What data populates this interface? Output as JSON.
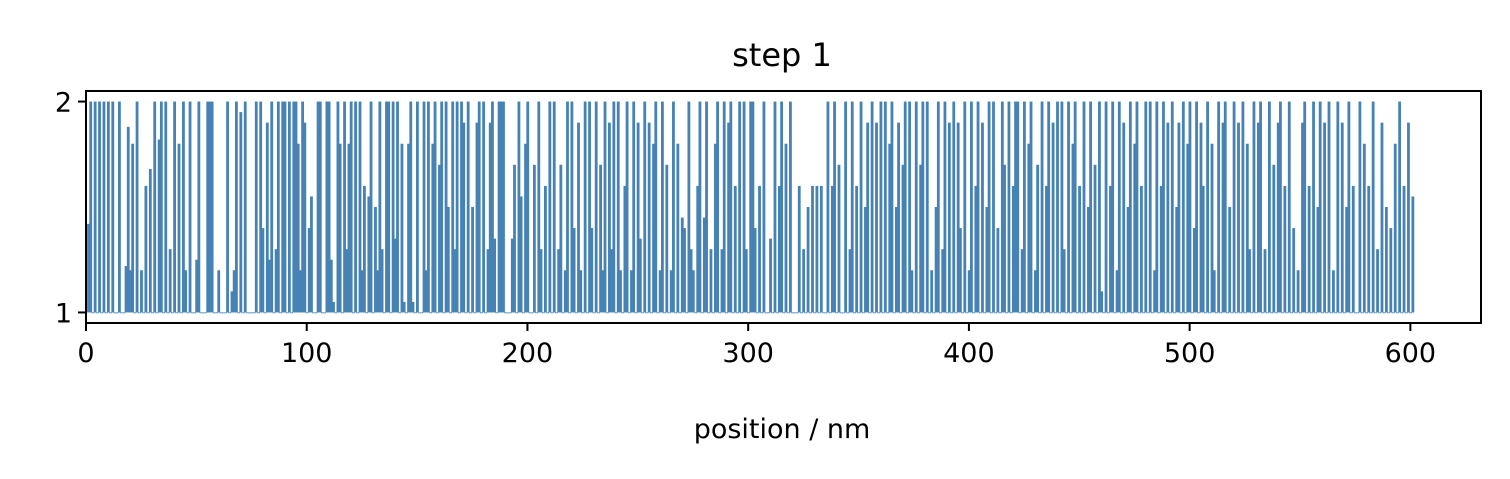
{
  "chart_data": {
    "type": "bar",
    "title": "step 1",
    "xlabel": "position / nm",
    "ylabel": "",
    "xlim": [
      0,
      632
    ],
    "ylim": [
      0.95,
      2.05
    ],
    "x_ticks": [
      0,
      100,
      200,
      300,
      400,
      500,
      600
    ],
    "x_tick_labels": [
      "0",
      "100",
      "200",
      "300",
      "400",
      "500",
      "600"
    ],
    "y_ticks": [
      1,
      2
    ],
    "y_tick_labels": [
      "1",
      "2"
    ],
    "bar_width_nm": 1,
    "baseline": 1,
    "grid": false,
    "legend": "none",
    "bar_color": "#4682b4",
    "positions_start": 1,
    "positions_step": 1,
    "values": [
      1.42,
      2.0,
      1.0,
      2.0,
      1.0,
      2.0,
      1.0,
      2.0,
      1.0,
      2.0,
      1.0,
      2.0,
      1.0,
      1.0,
      2.0,
      1.0,
      1.0,
      1.22,
      1.88,
      1.2,
      1.8,
      1.0,
      2.0,
      1.0,
      1.2,
      1.0,
      1.6,
      1.0,
      1.68,
      1.0,
      2.0,
      1.0,
      1.82,
      2.0,
      1.0,
      2.0,
      1.0,
      1.3,
      1.0,
      2.0,
      1.0,
      1.8,
      1.0,
      2.0,
      1.2,
      1.0,
      2.0,
      1.0,
      1.0,
      1.25,
      2.0,
      1.0,
      1.0,
      1.0,
      2.0,
      2.0,
      2.0,
      1.0,
      1.0,
      1.2,
      1.0,
      1.0,
      1.0,
      2.0,
      1.0,
      1.1,
      1.2,
      2.0,
      1.0,
      1.95,
      1.0,
      2.0,
      1.0,
      1.0,
      1.0,
      1.0,
      2.0,
      1.0,
      2.0,
      1.4,
      1.0,
      1.9,
      1.25,
      2.0,
      1.0,
      1.3,
      2.0,
      1.0,
      2.0,
      2.0,
      1.0,
      2.0,
      1.0,
      2.0,
      2.0,
      1.8,
      1.2,
      2.0,
      1.9,
      1.0,
      1.4,
      1.55,
      1.0,
      1.0,
      2.0,
      2.0,
      1.0,
      1.0,
      2.0,
      2.0,
      1.25,
      1.05,
      1.0,
      2.0,
      1.8,
      1.0,
      2.0,
      1.3,
      1.8,
      2.0,
      1.0,
      2.0,
      1.0,
      2.0,
      1.2,
      1.6,
      1.0,
      1.55,
      2.0,
      1.0,
      1.5,
      1.2,
      2.0,
      1.3,
      1.0,
      2.0,
      2.0,
      1.0,
      2.0,
      1.35,
      2.0,
      1.0,
      1.8,
      1.05,
      1.0,
      1.8,
      2.0,
      1.05,
      1.0,
      2.0,
      1.0,
      1.0,
      2.0,
      1.2,
      2.0,
      1.0,
      1.8,
      2.0,
      1.0,
      1.7,
      2.0,
      1.0,
      2.0,
      1.5,
      1.0,
      2.0,
      1.3,
      2.0,
      1.0,
      2.0,
      1.9,
      1.0,
      2.0,
      1.0,
      1.5,
      1.0,
      1.9,
      2.0,
      1.0,
      2.0,
      1.0,
      1.3,
      1.9,
      2.0,
      1.35,
      1.0,
      2.0,
      2.0,
      2.0,
      1.0,
      1.0,
      1.0,
      1.35,
      1.7,
      1.0,
      2.0,
      1.55,
      1.0,
      1.8,
      2.0,
      1.0,
      1.0,
      1.7,
      1.0,
      2.0,
      1.3,
      1.0,
      1.6,
      1.0,
      2.0,
      1.0,
      2.0,
      1.0,
      1.3,
      1.7,
      1.0,
      1.2,
      2.0,
      1.0,
      2.0,
      1.4,
      1.0,
      1.9,
      1.2,
      1.0,
      2.0,
      1.0,
      2.0,
      1.4,
      1.0,
      2.0,
      1.0,
      1.7,
      1.2,
      2.0,
      1.0,
      1.9,
      1.3,
      2.0,
      1.0,
      2.0,
      1.2,
      1.0,
      1.6,
      2.0,
      1.0,
      1.2,
      2.0,
      1.0,
      1.9,
      1.35,
      1.0,
      2.0,
      1.0,
      1.9,
      1.0,
      1.8,
      2.0,
      1.0,
      1.2,
      2.0,
      1.0,
      1.7,
      1.0,
      1.2,
      2.0,
      1.0,
      1.8,
      1.0,
      1.45,
      1.4,
      1.0,
      2.0,
      1.3,
      1.2,
      1.0,
      1.6,
      2.0,
      1.0,
      1.45,
      2.0,
      1.0,
      1.3,
      1.0,
      1.8,
      2.0,
      1.0,
      1.3,
      2.0,
      1.0,
      1.9,
      2.0,
      1.0,
      1.6,
      1.0,
      2.0,
      1.0,
      2.0,
      1.3,
      1.0,
      2.0,
      2.0,
      1.4,
      1.0,
      1.6,
      1.0,
      2.0,
      1.0,
      1.0,
      1.35,
      1.0,
      2.0,
      1.0,
      1.6,
      2.0,
      1.0,
      1.8,
      1.0,
      2.0,
      1.0,
      1.0,
      1.0,
      1.6,
      1.0,
      1.3,
      1.0,
      1.5,
      1.0,
      1.6,
      1.0,
      1.6,
      1.0,
      1.6,
      1.0,
      1.0,
      2.0,
      1.0,
      1.6,
      2.0,
      1.0,
      1.7,
      1.0,
      1.0,
      2.0,
      1.0,
      1.3,
      2.0,
      1.0,
      1.6,
      1.0,
      2.0,
      1.0,
      1.5,
      1.9,
      1.0,
      2.0,
      1.0,
      1.9,
      1.0,
      2.0,
      1.0,
      2.0,
      1.0,
      1.8,
      2.0,
      1.0,
      1.5,
      1.9,
      1.0,
      1.7,
      2.0,
      1.0,
      2.0,
      1.2,
      1.0,
      2.0,
      1.0,
      1.7,
      2.0,
      1.0,
      2.0,
      1.0,
      1.2,
      1.0,
      1.5,
      2.0,
      1.0,
      1.3,
      2.0,
      1.0,
      1.9,
      1.0,
      2.0,
      1.0,
      1.9,
      1.4,
      1.0,
      2.0,
      1.0,
      1.2,
      2.0,
      1.0,
      1.6,
      2.0,
      1.0,
      1.9,
      1.0,
      1.5,
      2.0,
      1.0,
      2.0,
      1.0,
      1.4,
      1.0,
      2.0,
      1.7,
      1.0,
      2.0,
      1.0,
      1.6,
      2.0,
      2.0,
      1.0,
      1.3,
      2.0,
      1.0,
      1.8,
      2.0,
      1.0,
      1.2,
      1.7,
      1.0,
      2.0,
      1.0,
      1.6,
      2.0,
      1.0,
      1.9,
      1.0,
      2.0,
      1.0,
      2.0,
      1.3,
      1.0,
      2.0,
      1.0,
      1.8,
      2.0,
      1.0,
      1.6,
      1.0,
      2.0,
      1.0,
      1.5,
      2.0,
      1.0,
      1.7,
      1.0,
      2.0,
      1.1,
      1.0,
      2.0,
      1.0,
      1.6,
      2.0,
      1.0,
      1.2,
      2.0,
      1.0,
      1.9,
      1.0,
      1.5,
      2.0,
      1.0,
      1.8,
      2.0,
      1.0,
      1.6,
      1.0,
      2.0,
      1.0,
      2.0,
      1.0,
      1.2,
      2.0,
      1.0,
      1.6,
      2.0,
      1.0,
      1.9,
      1.0,
      2.0,
      1.0,
      1.5,
      1.9,
      1.0,
      2.0,
      1.0,
      1.8,
      2.0,
      1.0,
      1.4,
      2.0,
      1.0,
      1.9,
      1.6,
      1.0,
      2.0,
      1.0,
      1.8,
      1.2,
      1.0,
      2.0,
      1.0,
      1.9,
      2.0,
      1.0,
      1.5,
      1.0,
      2.0,
      1.0,
      1.9,
      1.0,
      2.0,
      1.0,
      1.8,
      1.3,
      1.0,
      2.0,
      1.0,
      1.9,
      2.0,
      1.0,
      1.3,
      1.0,
      2.0,
      1.0,
      1.7,
      1.0,
      1.9,
      2.0,
      1.0,
      1.6,
      1.0,
      2.0,
      1.0,
      1.4,
      1.0,
      1.2,
      1.0,
      1.9,
      2.0,
      1.0,
      1.6,
      1.0,
      2.0,
      1.0,
      1.5,
      2.0,
      1.0,
      1.9,
      1.0,
      2.0,
      1.0,
      1.2,
      1.0,
      2.0,
      1.0,
      1.9,
      1.0,
      1.5,
      2.0,
      1.0,
      1.6,
      1.0,
      1.0,
      2.0,
      1.0,
      1.8,
      1.0,
      1.6,
      1.0,
      2.0,
      1.0,
      1.3,
      1.0,
      1.9,
      1.0,
      1.5,
      1.0,
      1.4,
      1.0,
      1.8,
      1.0,
      2.0,
      1.0,
      1.6,
      1.0,
      1.9,
      1.0,
      1.55
    ]
  }
}
